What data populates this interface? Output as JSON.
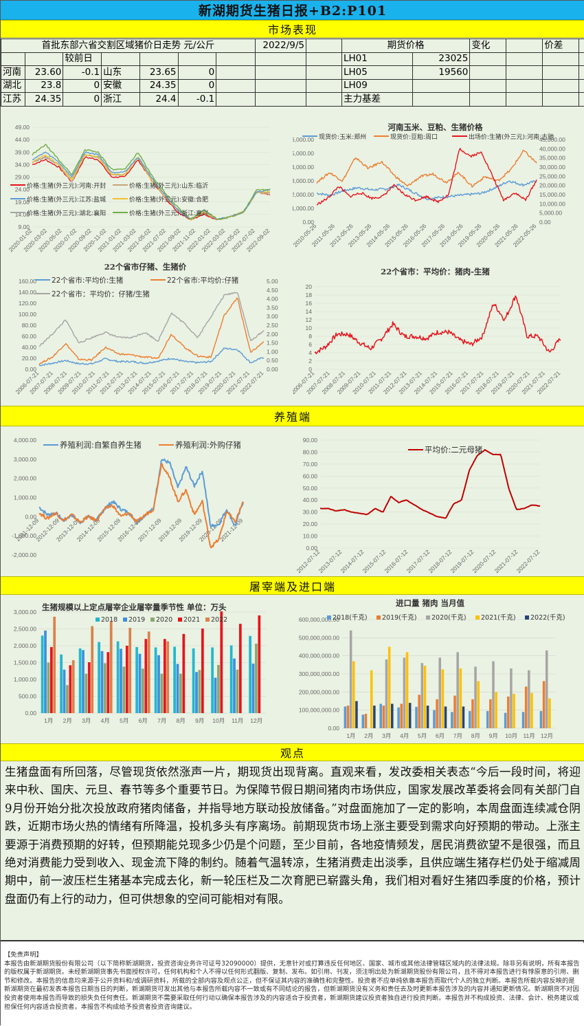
{
  "header": {
    "title": "新湖期货生猪日报+B2:P101"
  },
  "sections": {
    "market": "市场表现",
    "breeding": "养殖端",
    "slaughter": "屠宰端及进口端",
    "opinion": "观点"
  },
  "market_table": {
    "spot_title": "首批东部六省交割区域猪价日走势 元/公斤",
    "date": "2022/9/5",
    "futures_title": "期货价格",
    "change_label": "变化",
    "spread_label": "价差",
    "prev_day_label": "较前日",
    "spot_rows": [
      {
        "p1": "河南",
        "v1": "23.60",
        "c1": "-0.1",
        "p2": "山东",
        "v2": "23.65",
        "c2": "0"
      },
      {
        "p1": "湖北",
        "v1": "23.8",
        "c1": "0",
        "p2": "安徽",
        "v2": "24.35",
        "c2": "0"
      },
      {
        "p1": "江苏",
        "v1": "24.35",
        "c1": "0",
        "p2": "浙江",
        "v2": "24.4",
        "c2": "-0.1"
      }
    ],
    "futures_rows": [
      {
        "contract": "LH01",
        "price": "23025"
      },
      {
        "contract": "LH05",
        "price": "19560"
      },
      {
        "contract": "LH09",
        "price": ""
      },
      {
        "contract": "主力基差",
        "price": ""
      }
    ]
  },
  "chart_data": [
    {
      "id": "six-province-price",
      "type": "line",
      "title": "",
      "y_ticks": [
        "49.00",
        "44.00",
        "39.00",
        "34.00",
        "29.00",
        "24.00",
        "19.00",
        "14.00",
        "9.00"
      ],
      "ylim": [
        9,
        49
      ],
      "x_ticks": [
        "2020-01-02",
        "2020-03-02",
        "2020-05-02",
        "2020-07-02",
        "2020-09-02",
        "2020-11-02",
        "2021-01-02",
        "2021-03-02",
        "2021-05-02",
        "2021-07-02",
        "2021-09-02",
        "2021-11-02",
        "2022-01-02",
        "2022-03-02",
        "2022-05-02",
        "2022-07-02",
        "2022-09-02"
      ],
      "series": [
        {
          "name": "价格:生猪(外三元):河南:开封",
          "color": "#e8141c",
          "values": [
            34,
            36,
            33,
            27,
            37,
            36,
            29,
            29,
            36,
            28,
            21,
            15,
            12,
            14,
            12,
            13,
            15,
            23,
            22
          ]
        },
        {
          "name": "价格:生猪(外三元):山东:临沂",
          "color": "#c9a27a",
          "values": [
            35,
            37,
            34,
            27,
            38,
            37,
            30,
            30,
            37,
            28,
            21,
            16,
            12,
            15,
            12,
            13,
            15,
            23,
            22
          ]
        },
        {
          "name": "价格:生猪(外三元):湖北:襄阳",
          "color": "#a5a5a5",
          "values": [
            35,
            37,
            34,
            28,
            38,
            37,
            30,
            30,
            37,
            29,
            22,
            16,
            12,
            15,
            12,
            13,
            15,
            23,
            23
          ]
        },
        {
          "name": "价格:生猪(外三元):安徽:合肥",
          "color": "#f2c12e",
          "values": [
            35,
            38,
            34,
            28,
            38,
            37,
            30,
            30,
            37,
            28,
            22,
            16,
            12,
            15,
            12,
            13,
            15,
            23,
            23
          ]
        },
        {
          "name": "价格:生猪(外三元):江苏:盐城",
          "color": "#5b9bd5",
          "values": [
            36,
            39,
            35,
            29,
            39,
            38,
            31,
            31,
            37,
            29,
            22,
            16,
            12,
            16,
            12,
            13,
            15,
            23,
            24
          ]
        },
        {
          "name": "价格:生猪(外三元):浙江:嘉兴",
          "color": "#70ad47",
          "values": [
            38,
            42,
            36,
            30,
            40,
            39,
            32,
            32,
            39,
            30,
            23,
            17,
            12,
            16,
            12,
            13,
            15,
            24,
            24
          ]
        }
      ]
    },
    {
      "id": "henan-corn-soymeal-hog",
      "type": "line",
      "title": "河南玉米、豆粕、生猪价格",
      "y_ticks": [
        "6,000.00",
        "5,000.00",
        "4,000.00",
        "3,000.00",
        "2,000.00",
        "1,000.00",
        "0.00"
      ],
      "y2_ticks": [
        "45,000.00",
        "40,000.00",
        "35,000.00",
        "30,000.00",
        "25,000.00",
        "20,000.00",
        "15,000.00",
        "10,000.00",
        "5,000.00",
        "0.00"
      ],
      "ylim": [
        0,
        6000
      ],
      "y2lim": [
        0,
        45000
      ],
      "x_ticks": [
        "2010-05-26",
        "2011-05-26",
        "2012-05-26",
        "2013-05-26",
        "2014-05-26",
        "2015-05-26",
        "2016-05-26",
        "2017-05-26",
        "2018-05-26",
        "2019-05-26",
        "2020-05-26",
        "2021-05-26",
        "2022-05-26"
      ],
      "series": [
        {
          "name": "现货价:玉米:郑州",
          "color": "#5b9bd5",
          "axis": "left",
          "values": [
            2100,
            1950,
            2300,
            2500,
            2350,
            2400,
            2700,
            2200,
            1700,
            1800,
            1900,
            2000,
            2100,
            2500,
            3000,
            2700,
            3000
          ]
        },
        {
          "name": "现货价:豆粕:周口",
          "color": "#ed7d31",
          "axis": "left",
          "values": [
            2900,
            3600,
            3000,
            4700,
            3900,
            4400,
            3400,
            2600,
            3300,
            3500,
            2900,
            3600,
            2600,
            3300,
            3000,
            3800,
            5200,
            4300
          ]
        },
        {
          "name": "出场价:生猪(外三元):河南:古驰",
          "color": "#e8141c",
          "axis": "right",
          "values": [
            9500,
            13000,
            19500,
            14000,
            16000,
            13000,
            14000,
            20000,
            15000,
            12000,
            14000,
            11000,
            15000,
            40000,
            36000,
            38000,
            25000,
            12000,
            16000,
            12000,
            23000
          ]
        }
      ]
    },
    {
      "id": "22-province-piglet-hog",
      "type": "line",
      "title": "22个省市仔猪、生猪价",
      "y_ticks": [
        "160.00",
        "140.00",
        "120.00",
        "100.00",
        "80.00",
        "60.00",
        "40.00",
        "20.00",
        "0.00"
      ],
      "y2_ticks": [
        "5.00",
        "4.50",
        "4.00",
        "3.50",
        "3.00",
        "2.50",
        "2.00",
        "1.50",
        "1.00",
        "0.50",
        "0.00"
      ],
      "ylim": [
        0,
        160
      ],
      "y2lim": [
        0,
        5
      ],
      "x_ticks": [
        "2006-07-21",
        "2007-07-21",
        "2008-07-21",
        "2009-07-21",
        "2010-07-21",
        "2011-07-21",
        "2012-07-21",
        "2013-07-21",
        "2014-07-21",
        "2015-07-21",
        "2016-07-21",
        "2017-07-21",
        "2018-07-21",
        "2019-07-21",
        "2020-07-21",
        "2021-07-21",
        "2022-07-21"
      ],
      "series": [
        {
          "name": "22个省市:平均价:生猪",
          "color": "#5b9bd5",
          "axis": "left",
          "values": [
            7,
            11,
            16,
            10,
            10,
            19,
            14,
            14,
            11,
            15,
            20,
            14,
            12,
            14,
            38,
            36,
            12,
            22
          ]
        },
        {
          "name": "22个省市:平均价:仔猪",
          "color": "#ed7d31",
          "axis": "left",
          "values": [
            10,
            22,
            47,
            18,
            17,
            40,
            28,
            26,
            22,
            20,
            64,
            40,
            24,
            22,
            98,
            130,
            30,
            50
          ]
        },
        {
          "name": "22个省市：平均价：仔猪/生猪",
          "color": "#a5a5a5",
          "axis": "right",
          "values": [
            1.3,
            2.0,
            2.8,
            1.5,
            1.8,
            2.1,
            1.8,
            1.8,
            2.1,
            1.6,
            3.2,
            2.6,
            1.8,
            3.0,
            4.2,
            4.4,
            1.6,
            2.2
          ]
        }
      ]
    },
    {
      "id": "22-province-pork-hog-spread",
      "type": "line",
      "title": "22个省市：平均价：猪肉-生猪",
      "y_ticks": [
        "20",
        "18",
        "16",
        "14",
        "12",
        "10",
        "8",
        "6",
        "4",
        "2",
        "0"
      ],
      "ylim": [
        0,
        20
      ],
      "x_ticks": [
        "2006-07-21",
        "2007-07-21",
        "2008-07-21",
        "2009-07-21",
        "2010-07-21",
        "2011-07-21",
        "2012-07-21",
        "2013-07-21",
        "2014-07-21",
        "2015-07-21",
        "2016-07-21",
        "2017-07-21",
        "2018-07-21",
        "2019-07-21",
        "2020-07-21",
        "2021-07-21",
        "2022-07-21"
      ],
      "series": [
        {
          "name": "猪肉-生猪",
          "color": "#e8141c",
          "values": [
            4,
            5.5,
            8.5,
            8.5,
            6.5,
            5,
            7.5,
            11,
            8,
            8,
            7.5,
            9,
            9,
            7,
            6,
            8,
            16,
            12,
            18,
            8,
            8,
            4,
            7.5
          ]
        }
      ]
    },
    {
      "id": "breeding-profit",
      "type": "line",
      "title": "",
      "y_ticks": [
        "4,000.00",
        "3,000.00",
        "2,000.00",
        "1,000.00",
        "0.00",
        "-1,000.00",
        "-2,000.00"
      ],
      "ylim": [
        -2000,
        4000
      ],
      "x_ticks": [
        "2011-12-09",
        "2012-12-09",
        "2013-12-09",
        "2014-12-09",
        "2015-12-09",
        "2016-12-09",
        "2017-12-09",
        "2018-12-09",
        "2019-12-09",
        "2020-12-09",
        "2021-12-09"
      ],
      "series": [
        {
          "name": "养殖利润:自繁自养生猪",
          "color": "#5b9bd5",
          "values": [
            500,
            100,
            200,
            -200,
            100,
            -300,
            0,
            -200,
            400,
            800,
            400,
            200,
            -300,
            100,
            400,
            3000,
            2800,
            1500,
            2600,
            1600,
            2400,
            -500,
            -400,
            400,
            -500,
            800
          ]
        },
        {
          "name": "养殖利润:外购仔猪",
          "color": "#ed7d31",
          "values": [
            200,
            -100,
            200,
            -200,
            100,
            -300,
            0,
            -200,
            400,
            600,
            0,
            200,
            -300,
            100,
            400,
            2800,
            2000,
            800,
            1400,
            100,
            800,
            -1600,
            -1200,
            300,
            -300,
            800
          ]
        }
      ]
    },
    {
      "id": "binary-sow-price",
      "type": "line",
      "title": "",
      "y_ticks": [
        "90.00",
        "80.00",
        "70.00",
        "60.00",
        "50.00",
        "40.00",
        "30.00",
        "20.00",
        "10.00",
        "0.00"
      ],
      "ylim": [
        0,
        90
      ],
      "x_ticks": [
        "2012-07-12",
        "2013-07-12",
        "2014-07-12",
        "2015-07-12",
        "2016-07-12",
        "2017-07-12",
        "2018-07-12",
        "2019-07-12",
        "2020-07-12",
        "2021-07-12",
        "2022-07-12"
      ],
      "series": [
        {
          "name": "平均价:二元母猪",
          "color": "#c00000",
          "values": [
            33,
            33,
            31,
            32,
            30,
            29,
            28,
            33,
            30,
            43,
            38,
            40,
            36,
            32,
            29,
            26,
            25,
            37,
            40,
            65,
            77,
            82,
            78,
            78,
            50,
            32,
            33,
            36,
            35
          ]
        }
      ]
    },
    {
      "id": "slaughter-volume",
      "type": "bar",
      "title": "生猪规模以上定点屠宰企业屠宰量季节性 单位：万头",
      "categories": [
        "1月",
        "2月",
        "3月",
        "4月",
        "5月",
        "6月",
        "7月",
        "8月",
        "9月",
        "10月",
        "11月",
        "12月"
      ],
      "y_ticks": [
        "3,000.00",
        "2,500.00",
        "2,000.00",
        "1,500.00",
        "1,000.00",
        "500.00",
        "0.00"
      ],
      "ylim": [
        0,
        3000
      ],
      "series": [
        {
          "name": "2018",
          "color": "#22b8cf",
          "values": [
            2300,
            1740,
            1920,
            2110,
            2130,
            1960,
            1950,
            1970,
            1920,
            1950,
            2010,
            2290
          ]
        },
        {
          "name": "2019",
          "color": "#3d8fe0",
          "values": [
            2450,
            1290,
            1870,
            1840,
            1910,
            1760,
            1720,
            1460,
            1220,
            1050,
            1620,
            1470
          ]
        },
        {
          "name": "2020",
          "color": "#8aa870",
          "values": [
            1500,
            830,
            1170,
            1480,
            1380,
            1320,
            1170,
            1170,
            1280,
            1430,
            1290,
            2060
          ]
        },
        {
          "name": "2021",
          "color": "#e8141c",
          "values": [
            1960,
            1420,
            1510,
            1810,
            2000,
            2200,
            2200,
            2350,
            2510,
            3020,
            2650,
            2900
          ]
        },
        {
          "name": "2022",
          "color": "#d9824b",
          "values": [
            2860,
            1570,
            2580,
            2730,
            2530,
            2420,
            2130,
            null,
            null,
            null,
            null,
            null
          ]
        }
      ]
    },
    {
      "id": "pork-import-volume",
      "type": "bar",
      "title": "进口量 猪肉 当月值",
      "categories": [
        "1月",
        "2月",
        "3月",
        "4月",
        "5月",
        "6月",
        "7月",
        "8月",
        "9月",
        "10月",
        "11月",
        "12月"
      ],
      "y_ticks": [
        "600,000,000.00",
        "500,000,000.00",
        "400,000,000.00",
        "300,000,000.00",
        "200,000,000.00",
        "100,000,000.00",
        "0.00"
      ],
      "ylim": [
        0,
        600000000
      ],
      "series": [
        {
          "name": "2018(千克)",
          "color": "#5b9bd5",
          "values": [
            120000000,
            75000000,
            135000000,
            115000000,
            118000000,
            100000000,
            90000000,
            95000000,
            95000000,
            85000000,
            90000000,
            95000000
          ]
        },
        {
          "name": "2019(千克)",
          "color": "#ed7d31",
          "values": [
            125000000,
            80000000,
            125000000,
            135000000,
            185000000,
            160000000,
            180000000,
            160000000,
            160000000,
            175000000,
            230000000,
            260000000
          ]
        },
        {
          "name": "2020(千克)",
          "color": "#a5a5a5",
          "values": [
            540000000,
            null,
            380000000,
            390000000,
            360000000,
            390000000,
            420000000,
            340000000,
            370000000,
            330000000,
            320000000,
            430000000
          ]
        },
        {
          "name": "2021(千克)",
          "color": "#ffc000",
          "values": [
            370000000,
            320000000,
            450000000,
            420000000,
            345000000,
            325000000,
            330000000,
            260000000,
            200000000,
            190000000,
            195000000,
            165000000
          ]
        },
        {
          "name": "2022(千克)",
          "color": "#264478",
          "values": [
            150000000,
            125000000,
            135000000,
            140000000,
            125000000,
            120000000,
            120000000,
            null,
            null,
            null,
            null,
            null
          ]
        }
      ]
    }
  ],
  "opinion": {
    "text": "生猪盘面有所回落，尽管现货依然涨声一片，期现货出现背离。直观来看，发改委相关表态“今后一段时间，将迎来中秋、国庆、元旦、春节等多个重要节日。为保障节假日期间猪肉市场供应，国家发展改革委将会同有关部门自9月份开始分批次投放政府猪肉储备，并指导地方联动投放储备。”对盘面施加了一定的影响，本周盘面连续减仓阴跌，近期市场火热的情绪有所降温，投机多头有序离场。前期现货市场上涨主要受到需求向好预期的带动。上涨主要源于消费预期的好转，但预期能兑现多少仍是个问题，至少目前，各地疫情频发，居民消费欲望不是很强，而且绝对消费能力受到收入、现金流下降的制约。随着气温转凉，生猪消费走出淡季，且供应端生猪存栏仍处于缩减周期中，前一波压栏生猪基本完成去化，新一轮压栏及二次育肥已崭露头角，我们相对看好生猪四季度的价格，预计盘面仍有上行的动力，但可供想象的空间可能相对有限。"
  },
  "disclaimer": {
    "heading": "【免责声明】",
    "text": "本报告由新湖期货股份有限公司（以下简称新湖期货，投资咨询业务许可证号32090000）提供，无意针对或打算违反任何地区、国家、城市或其他法律管辖区域内的法律法规。除非另有说明，所有本报告的版权属于新湖期货。未经新湖期货事先书面授权许可，任何机构和个人不得以任何形式翻版、复制、发布。如引用、刊发，须注明出处为新湖期货股份有限公司，且不得对本报告进行有悖原意的引用、删节和修改。本报告的信息均来源于公开资料和/或调研资料，所载的全部内容及观点公正，但不保证其内容的准确性和完整性。投资者不应单纯依靠本报告而取代个人的独立判断。本报告所载内容反映的是新湖期货在最初发表本报告日期当日的判断，新湖期货可发出其他与本报告所载内容不一致或有不同结论的报告，但新湖期货没有义务和责任去及时更新本报告涉及的内容并通知更新情况。新湖期货不对因投资者使用本报告而导致的损失负任何责任。新湖期货不需要采取任何行动以确保本报告涉及的内容适合于投资者，新湖期货建议投资者独自进行投资判断。本报告并不构成投资、法律、会计、税务建议或担保任何内容适合投资者，本报告不构成给予投资者投资咨询建议。"
  },
  "colors": {
    "title_bar": "#19b2ed",
    "section_bar": "#ffff00",
    "panel_bg": "#eaf2e3"
  }
}
